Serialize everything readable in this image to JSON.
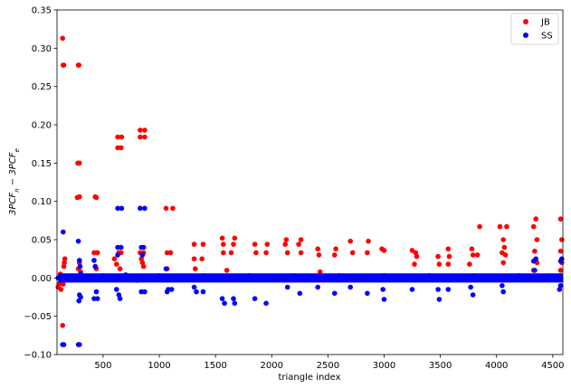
{
  "chart_data": {
    "type": "scatter",
    "title": "",
    "xlabel": "triangle index",
    "ylabel_parts": [
      "3PCF",
      "n",
      " − 3PCF",
      "e"
    ],
    "xlim": [
      90,
      4590
    ],
    "ylim": [
      -0.1,
      0.35
    ],
    "xticks": [
      500,
      1000,
      1500,
      2000,
      2500,
      3000,
      3500,
      4000,
      4500
    ],
    "yticks": [
      -0.1,
      -0.05,
      0.0,
      0.05,
      0.1,
      0.15,
      0.2,
      0.25,
      0.3,
      0.35
    ],
    "ytick_labels": [
      "−0.10",
      "−0.05",
      "0.00",
      "0.05",
      "0.10",
      "0.15",
      "0.20",
      "0.25",
      "0.30",
      "0.35"
    ],
    "grid": false,
    "legend_position": "top-right",
    "series": [
      {
        "name": "JB",
        "color": "#ff0000",
        "points": [
          [
            140,
            0.313
          ],
          [
            145,
            0.278
          ],
          [
            150,
            0.278
          ],
          [
            280,
            0.278
          ],
          [
            285,
            0.278
          ],
          [
            275,
            0.15
          ],
          [
            290,
            0.15
          ],
          [
            270,
            0.105
          ],
          [
            290,
            0.106
          ],
          [
            430,
            0.106
          ],
          [
            440,
            0.105
          ],
          [
            150,
            0.015
          ],
          [
            155,
            0.02
          ],
          [
            160,
            0.025
          ],
          [
            145,
            -0.008
          ],
          [
            140,
            -0.062
          ],
          [
            280,
            0.012
          ],
          [
            290,
            0.02
          ],
          [
            300,
            0.008
          ],
          [
            420,
            0.033
          ],
          [
            450,
            0.033
          ],
          [
            440,
            0.012
          ],
          [
            600,
            0.025
          ],
          [
            630,
            0.184
          ],
          [
            665,
            0.184
          ],
          [
            630,
            0.17
          ],
          [
            660,
            0.17
          ],
          [
            650,
            0.012
          ],
          [
            640,
            0.033
          ],
          [
            660,
            0.033
          ],
          [
            620,
            0.018
          ],
          [
            830,
            0.193
          ],
          [
            870,
            0.193
          ],
          [
            830,
            0.184
          ],
          [
            870,
            0.184
          ],
          [
            830,
            0.033
          ],
          [
            860,
            0.033
          ],
          [
            840,
            0.025
          ],
          [
            850,
            0.02
          ],
          [
            860,
            0.015
          ],
          [
            1060,
            0.091
          ],
          [
            1120,
            0.091
          ],
          [
            1070,
            0.033
          ],
          [
            1100,
            0.033
          ],
          [
            1070,
            0.012
          ],
          [
            1310,
            0.044
          ],
          [
            1390,
            0.044
          ],
          [
            1310,
            0.025
          ],
          [
            1380,
            0.025
          ],
          [
            1320,
            0.012
          ],
          [
            1560,
            0.052
          ],
          [
            1670,
            0.052
          ],
          [
            1570,
            0.044
          ],
          [
            1660,
            0.044
          ],
          [
            1570,
            0.033
          ],
          [
            1640,
            0.033
          ],
          [
            1600,
            0.01
          ],
          [
            1850,
            0.044
          ],
          [
            1960,
            0.044
          ],
          [
            1860,
            0.033
          ],
          [
            1950,
            0.033
          ],
          [
            2130,
            0.05
          ],
          [
            2260,
            0.05
          ],
          [
            2120,
            0.044
          ],
          [
            2240,
            0.044
          ],
          [
            2140,
            0.033
          ],
          [
            2260,
            0.033
          ],
          [
            2410,
            0.038
          ],
          [
            2570,
            0.038
          ],
          [
            2420,
            0.03
          ],
          [
            2560,
            0.03
          ],
          [
            2430,
            0.008
          ],
          [
            2700,
            0.048
          ],
          [
            2860,
            0.048
          ],
          [
            2720,
            0.033
          ],
          [
            2850,
            0.033
          ],
          [
            2980,
            0.038
          ],
          [
            3000,
            0.036
          ],
          [
            3250,
            0.036
          ],
          [
            3280,
            0.033
          ],
          [
            3290,
            0.028
          ],
          [
            3270,
            0.018
          ],
          [
            3480,
            0.028
          ],
          [
            3570,
            0.038
          ],
          [
            3580,
            0.028
          ],
          [
            3570,
            0.018
          ],
          [
            3490,
            0.018
          ],
          [
            3780,
            0.038
          ],
          [
            3850,
            0.067
          ],
          [
            3830,
            0.03
          ],
          [
            3760,
            0.018
          ],
          [
            3790,
            0.03
          ],
          [
            4030,
            0.067
          ],
          [
            4090,
            0.067
          ],
          [
            4060,
            0.05
          ],
          [
            4070,
            0.04
          ],
          [
            4050,
            0.033
          ],
          [
            4080,
            0.03
          ],
          [
            4060,
            0.02
          ],
          [
            4330,
            0.067
          ],
          [
            4350,
            0.077
          ],
          [
            4360,
            0.05
          ],
          [
            4340,
            0.035
          ],
          [
            4360,
            0.02
          ],
          [
            4330,
            0.01
          ],
          [
            4570,
            0.077
          ],
          [
            4580,
            0.05
          ],
          [
            4570,
            0.035
          ],
          [
            4580,
            0.02
          ],
          [
            4570,
            0.01
          ],
          [
            100,
            -0.012
          ],
          [
            110,
            -0.008
          ],
          [
            120,
            0.005
          ],
          [
            125,
            -0.015
          ]
        ]
      },
      {
        "name": "SS",
        "color": "#0000ff",
        "points": [
          [
            145,
            0.06
          ],
          [
            140,
            -0.087
          ],
          [
            150,
            -0.087
          ],
          [
            280,
            -0.087
          ],
          [
            290,
            -0.087
          ],
          [
            280,
            0.048
          ],
          [
            290,
            0.023
          ],
          [
            295,
            0.015
          ],
          [
            300,
            -0.025
          ],
          [
            285,
            -0.03
          ],
          [
            290,
            -0.022
          ],
          [
            420,
            0.023
          ],
          [
            430,
            0.015
          ],
          [
            440,
            -0.018
          ],
          [
            450,
            -0.027
          ],
          [
            420,
            -0.027
          ],
          [
            630,
            0.091
          ],
          [
            665,
            0.091
          ],
          [
            630,
            0.04
          ],
          [
            660,
            0.04
          ],
          [
            630,
            0.03
          ],
          [
            650,
            -0.027
          ],
          [
            640,
            -0.022
          ],
          [
            620,
            -0.015
          ],
          [
            830,
            0.091
          ],
          [
            870,
            0.091
          ],
          [
            840,
            0.04
          ],
          [
            860,
            0.04
          ],
          [
            850,
            0.03
          ],
          [
            840,
            -0.018
          ],
          [
            870,
            -0.018
          ],
          [
            1060,
            0.012
          ],
          [
            1080,
            -0.015
          ],
          [
            1110,
            -0.015
          ],
          [
            1070,
            -0.018
          ],
          [
            1310,
            -0.012
          ],
          [
            1330,
            -0.018
          ],
          [
            1390,
            -0.018
          ],
          [
            1560,
            -0.027
          ],
          [
            1580,
            -0.033
          ],
          [
            1660,
            -0.027
          ],
          [
            1670,
            -0.033
          ],
          [
            1850,
            -0.027
          ],
          [
            1950,
            -0.033
          ],
          [
            2140,
            -0.012
          ],
          [
            2250,
            -0.02
          ],
          [
            2410,
            -0.012
          ],
          [
            2560,
            -0.02
          ],
          [
            2700,
            -0.012
          ],
          [
            2850,
            -0.02
          ],
          [
            2990,
            -0.015
          ],
          [
            3000,
            -0.028
          ],
          [
            3250,
            -0.015
          ],
          [
            3480,
            -0.015
          ],
          [
            3490,
            -0.028
          ],
          [
            3570,
            -0.015
          ],
          [
            3770,
            -0.012
          ],
          [
            3790,
            -0.022
          ],
          [
            4050,
            -0.01
          ],
          [
            4060,
            -0.018
          ],
          [
            4330,
            0.022
          ],
          [
            4350,
            0.025
          ],
          [
            4340,
            0.01
          ],
          [
            4570,
            0.022
          ],
          [
            4580,
            0.025
          ],
          [
            4570,
            -0.01
          ],
          [
            4560,
            -0.015
          ],
          [
            100,
            0.0
          ],
          [
            200,
            0.002
          ],
          [
            300,
            0.005
          ],
          [
            400,
            -0.002
          ],
          [
            500,
            0.003
          ],
          [
            600,
            0.0
          ],
          [
            700,
            0.004
          ],
          [
            800,
            -0.003
          ],
          [
            900,
            0.001
          ],
          [
            1000,
            0.003
          ],
          [
            1100,
            -0.002
          ],
          [
            1200,
            0.002
          ],
          [
            1300,
            0.0
          ],
          [
            1400,
            0.003
          ],
          [
            1500,
            -0.002
          ],
          [
            1600,
            0.002
          ],
          [
            1700,
            0.0
          ],
          [
            1800,
            0.003
          ],
          [
            1900,
            -0.002
          ],
          [
            2000,
            0.002
          ],
          [
            2100,
            0.0
          ],
          [
            2200,
            0.003
          ],
          [
            2300,
            -0.002
          ],
          [
            2400,
            0.002
          ],
          [
            2500,
            0.0
          ],
          [
            2600,
            0.003
          ],
          [
            2700,
            -0.002
          ],
          [
            2800,
            0.002
          ],
          [
            2900,
            0.0
          ],
          [
            3000,
            0.003
          ],
          [
            3100,
            -0.002
          ],
          [
            3200,
            0.002
          ],
          [
            3300,
            0.0
          ],
          [
            3400,
            0.003
          ],
          [
            3500,
            -0.002
          ],
          [
            3600,
            0.002
          ],
          [
            3700,
            0.0
          ],
          [
            3800,
            0.003
          ],
          [
            3900,
            -0.002
          ],
          [
            4000,
            0.002
          ],
          [
            4100,
            0.0
          ],
          [
            4200,
            0.003
          ],
          [
            4300,
            -0.002
          ],
          [
            4400,
            0.002
          ],
          [
            4500,
            0.0
          ]
        ]
      }
    ]
  }
}
